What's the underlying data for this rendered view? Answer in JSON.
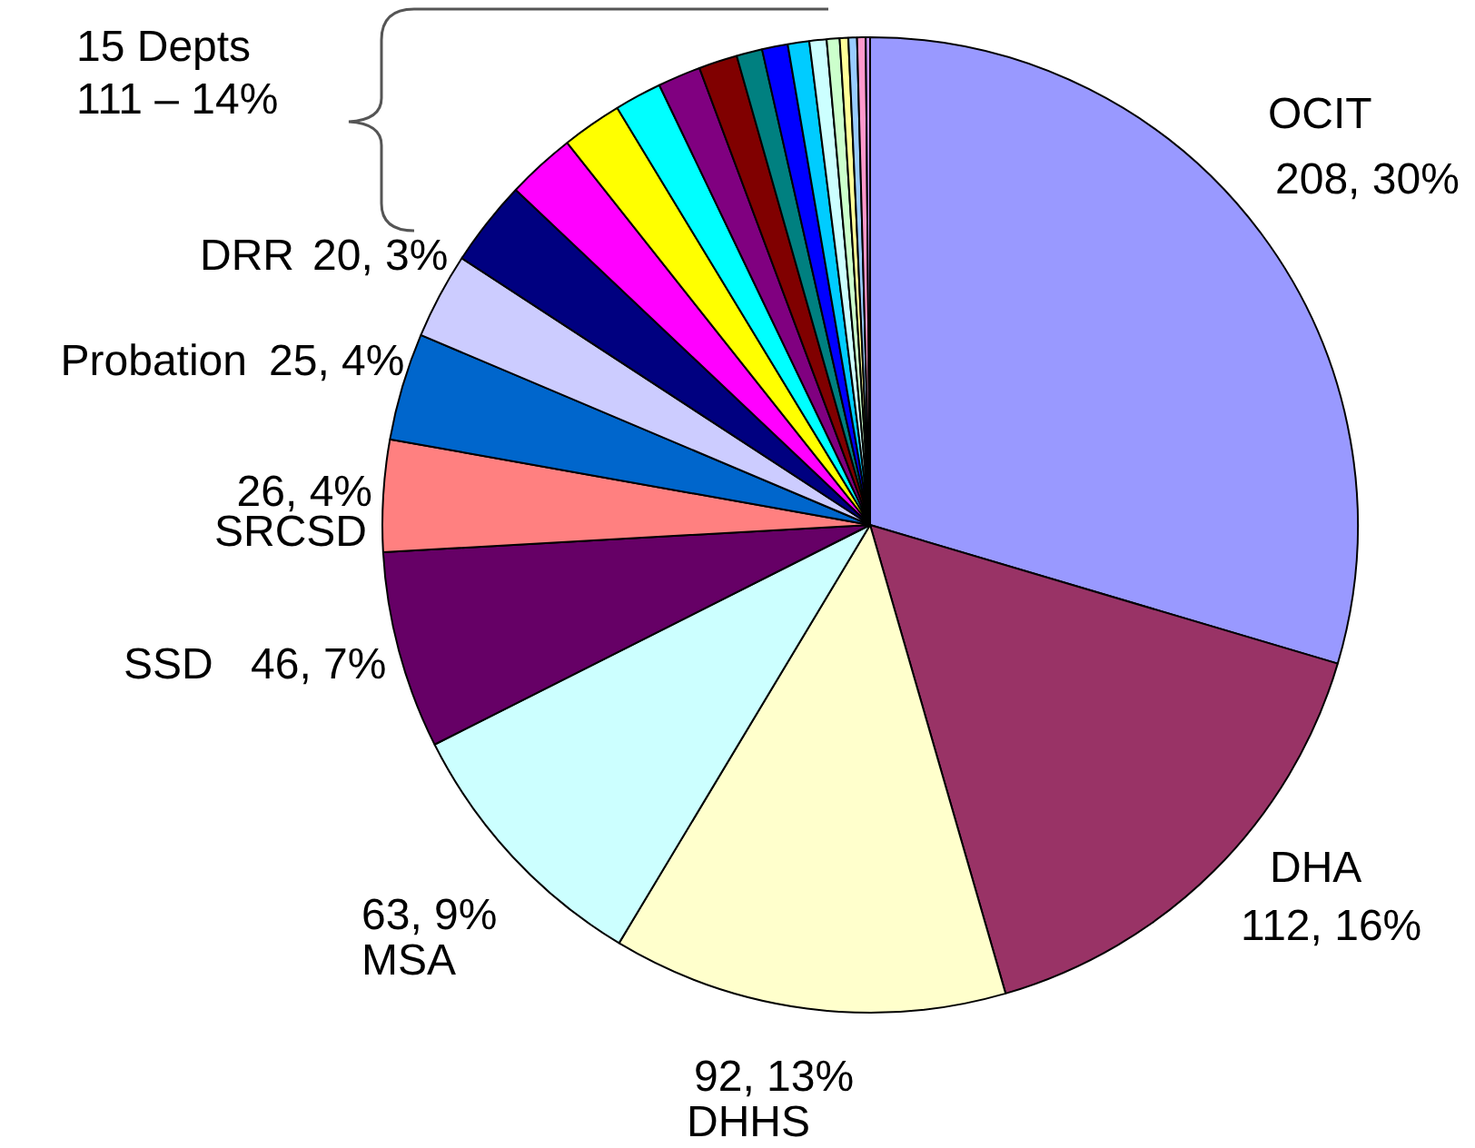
{
  "chart_data": {
    "type": "pie",
    "categories": [
      "OCIT",
      "DHA",
      "DHHS",
      "MSA",
      "SSD",
      "SRCSD",
      "Probation",
      "DRR",
      null,
      null,
      null,
      null,
      null,
      null,
      null,
      null,
      null,
      null,
      null,
      null,
      null,
      null,
      null
    ],
    "values": [
      208,
      112,
      92,
      63,
      46,
      26,
      25,
      20,
      20,
      16,
      14,
      11,
      10,
      9,
      6,
      6,
      5,
      4,
      3,
      2,
      2,
      2,
      1
    ],
    "colors": [
      "#9999ff",
      "#993366",
      "#ffffcc",
      "#ccffff",
      "#660066",
      "#ff8080",
      "#0066cc",
      "#ccccff",
      "#000080",
      "#ff00ff",
      "#ffff00",
      "#00ffff",
      "#800080",
      "#800000",
      "#008080",
      "#0000ff",
      "#00ccff",
      "#ccffff",
      "#ccffcc",
      "#ffff99",
      "#99ccff",
      "#ff99cc",
      "#cc99ff"
    ],
    "value_labels": [
      "208, 30%",
      "112, 16%",
      "92, 13%",
      "63, 9%",
      "46, 7%",
      "26, 4%",
      "25, 4%",
      "20, 3%",
      null,
      null,
      null,
      null,
      null,
      null,
      null,
      null,
      null,
      null,
      null,
      null,
      null,
      null,
      null
    ],
    "annotations": [
      "15 Depts",
      "111 – 14%"
    ]
  }
}
